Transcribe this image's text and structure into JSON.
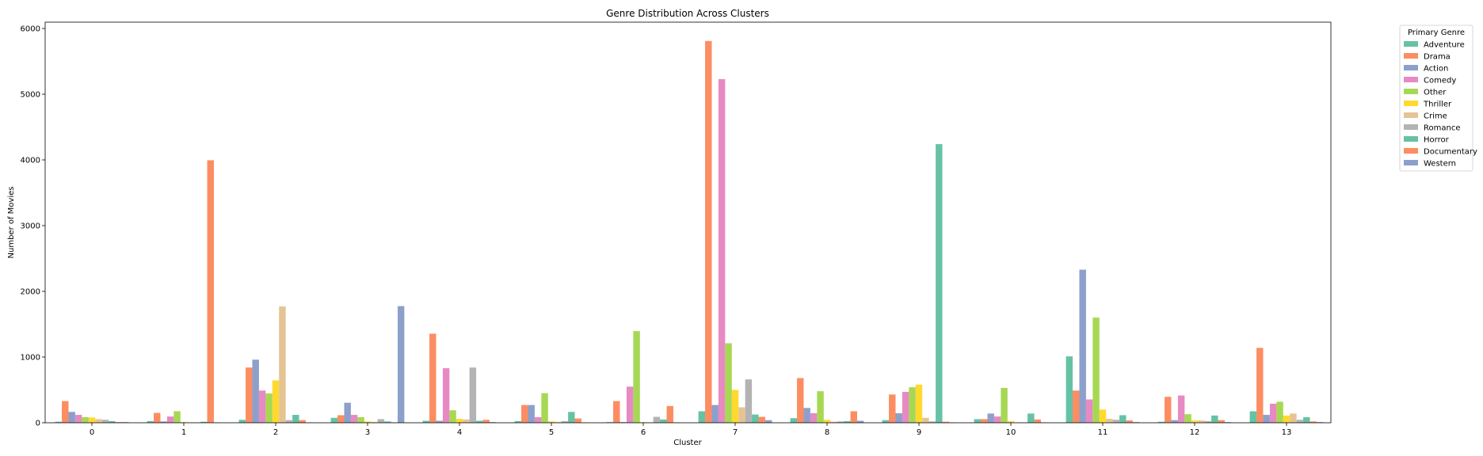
{
  "chart_data": {
    "type": "bar",
    "title": "Genre Distribution Across Clusters",
    "xlabel": "Cluster",
    "ylabel": "Number of Movies",
    "ylim": [
      0,
      6100
    ],
    "yticks": [
      0,
      1000,
      2000,
      3000,
      4000,
      5000,
      6000
    ],
    "categories": [
      "0",
      "1",
      "2",
      "3",
      "4",
      "5",
      "6",
      "7",
      "8",
      "9",
      "10",
      "11",
      "12",
      "13"
    ],
    "legend": {
      "title": "Primary Genre",
      "placement": "outside-top-right"
    },
    "grid": false,
    "series": [
      {
        "name": "Adventure",
        "color": "#66c2a5",
        "values": [
          15,
          25,
          45,
          75,
          30,
          25,
          10,
          175,
          70,
          40,
          55,
          1010,
          15,
          175
        ]
      },
      {
        "name": "Drama",
        "color": "#fc8d62",
        "values": [
          330,
          150,
          840,
          115,
          1355,
          270,
          330,
          5810,
          680,
          430,
          55,
          490,
          395,
          1140
        ]
      },
      {
        "name": "Action",
        "color": "#8da0cb",
        "values": [
          165,
          20,
          960,
          305,
          30,
          270,
          10,
          270,
          225,
          145,
          140,
          2330,
          40,
          120
        ]
      },
      {
        "name": "Comedy",
        "color": "#e78ac3",
        "values": [
          120,
          95,
          490,
          120,
          830,
          85,
          550,
          5230,
          145,
          470,
          95,
          355,
          415,
          290
        ]
      },
      {
        "name": "Other",
        "color": "#a6d854",
        "values": [
          85,
          175,
          445,
          85,
          190,
          450,
          1395,
          1210,
          480,
          540,
          530,
          1600,
          130,
          320
        ]
      },
      {
        "name": "Thriller",
        "color": "#ffd92f",
        "values": [
          80,
          10,
          645,
          20,
          60,
          20,
          10,
          500,
          45,
          580,
          25,
          200,
          35,
          110
        ]
      },
      {
        "name": "Crime",
        "color": "#e5c494",
        "values": [
          55,
          5,
          1770,
          10,
          50,
          10,
          5,
          235,
          15,
          75,
          5,
          60,
          35,
          140
        ]
      },
      {
        "name": "Romance",
        "color": "#b3b3b3",
        "values": [
          45,
          5,
          40,
          55,
          840,
          25,
          90,
          660,
          20,
          20,
          5,
          45,
          25,
          45
        ]
      },
      {
        "name": "Horror",
        "color": "#66c2a5",
        "values": [
          25,
          15,
          120,
          20,
          30,
          165,
          50,
          125,
          25,
          4240,
          140,
          115,
          110,
          85
        ]
      },
      {
        "name": "Documentary",
        "color": "#fc8d62",
        "values": [
          10,
          3995,
          40,
          5,
          45,
          65,
          255,
          90,
          175,
          15,
          50,
          35,
          40,
          20
        ]
      },
      {
        "name": "Western",
        "color": "#8da0cb",
        "values": [
          10,
          5,
          5,
          1775,
          10,
          5,
          5,
          40,
          30,
          5,
          5,
          10,
          10,
          10
        ]
      }
    ]
  }
}
